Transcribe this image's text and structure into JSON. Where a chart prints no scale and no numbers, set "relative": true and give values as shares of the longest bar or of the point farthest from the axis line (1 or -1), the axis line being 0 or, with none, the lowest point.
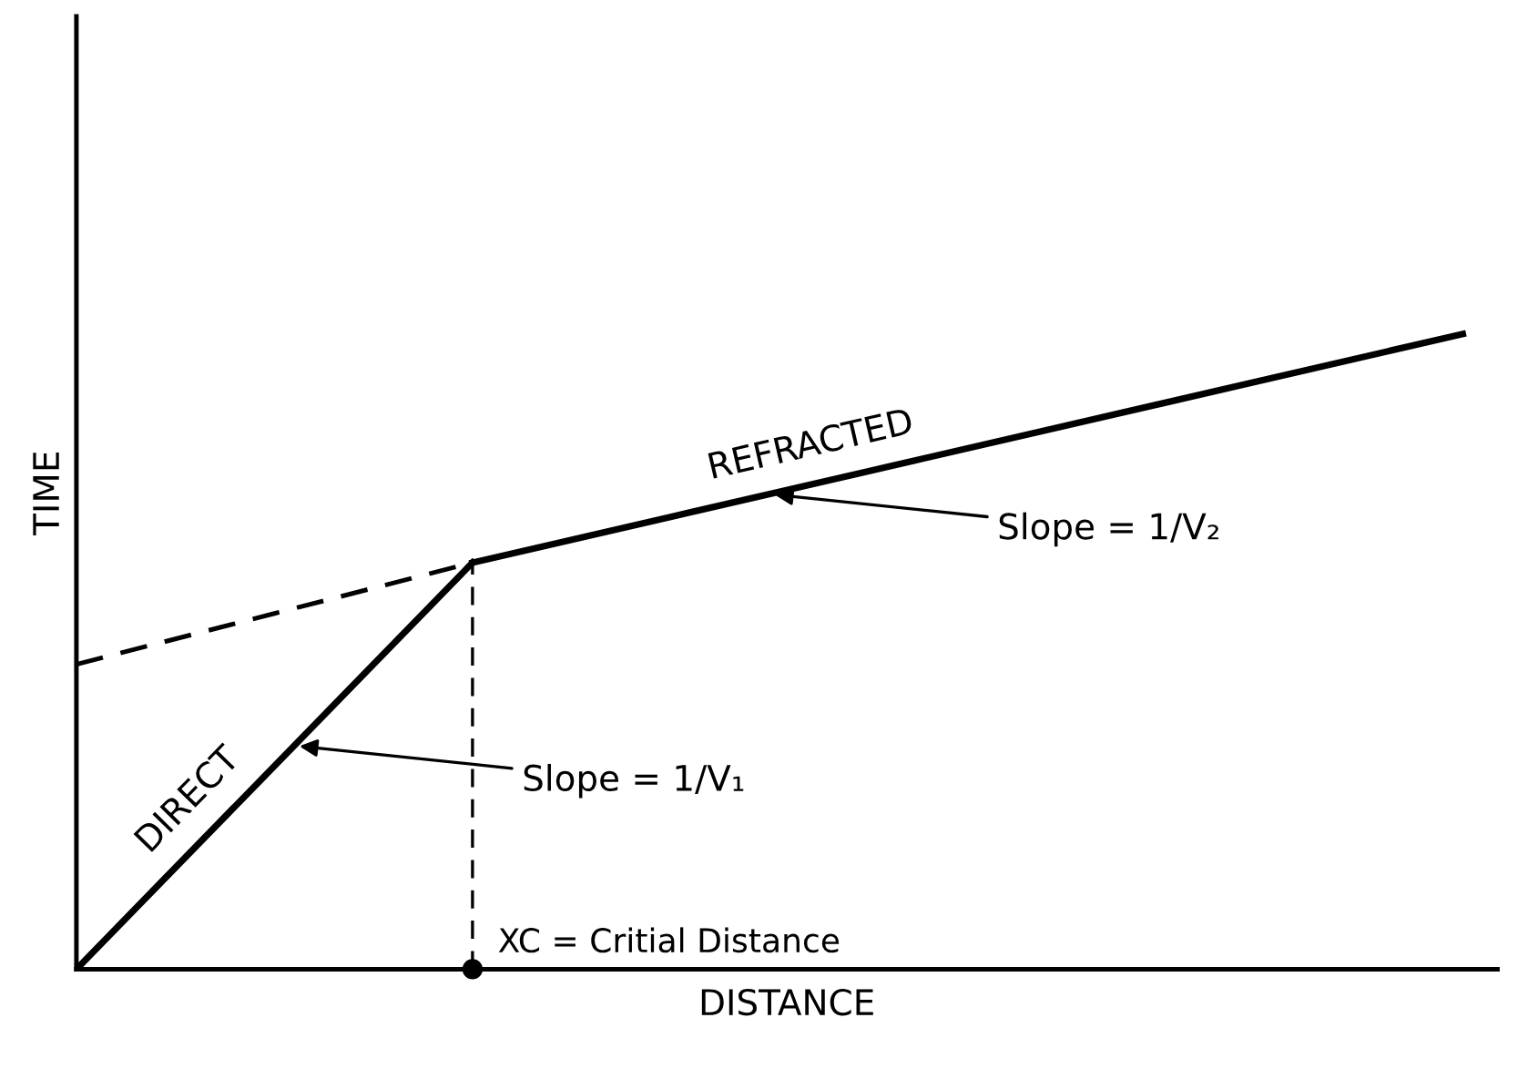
{
  "chart_data": {
    "type": "line",
    "relative": true,
    "xlabel": "DISTANCE",
    "ylabel": "TIME",
    "categories": [
      null,
      null,
      null,
      null,
      null,
      null,
      null,
      null
    ],
    "series": [
      {
        "name": "DIRECT",
        "color": "#000000",
        "line_style": "solid",
        "values": [
          0,
          0.32,
          0.64,
          null,
          null,
          null,
          null,
          null
        ]
      },
      {
        "name": "REFRACTED",
        "color": "#000000",
        "line_style": "solid",
        "values": [
          null,
          null,
          0.64,
          0.712,
          0.784,
          0.856,
          0.928,
          1
        ]
      },
      {
        "color": "#000000",
        "line_style": "dashed",
        "values": [
          0.48,
          0.56,
          0.64,
          null,
          null,
          null,
          null,
          null
        ]
      }
    ],
    "ref_lines": [
      {
        "axis": "x",
        "label": "XC = Critial Distance",
        "line_style": "dashed",
        "color": "#000000"
      }
    ],
    "annotations": [
      "Slope = 1/V₁",
      "Slope = 1/V₂"
    ]
  }
}
